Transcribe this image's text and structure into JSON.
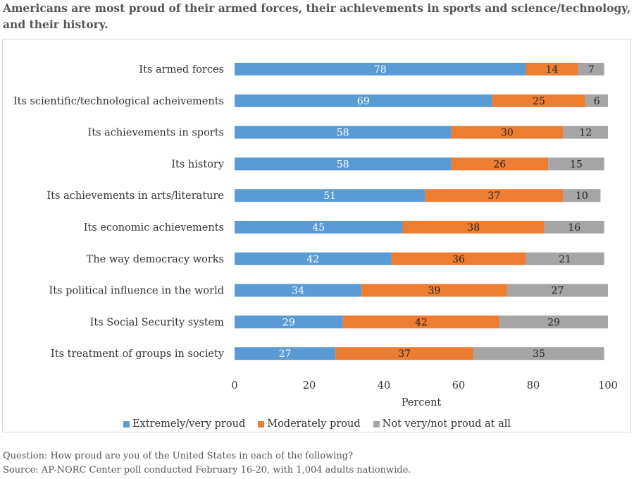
{
  "title": "Americans are most proud of their armed forces, their achievements in sports and science/technology, and their history.",
  "footer": {
    "question": "Question: How proud are you of the United States in each of the following?",
    "source": "Source: AP-NORC Center poll conducted February 16-20, with 1,004 adults nationwide."
  },
  "colors": {
    "extremely": "#5b9bd5",
    "moderately": "#ed7d31",
    "not": "#a5a5a5"
  },
  "chart_data": {
    "type": "bar",
    "orientation": "horizontal",
    "stacked": true,
    "categories": [
      "Its armed forces",
      "Its scientific/technological acheivements",
      "Its achievements in sports",
      "Its history",
      "Its achievements in arts/literature",
      "Its economic achievements",
      "The way democracy works",
      "Its political influence in the world",
      "Its Social Security system",
      "Its treatment of groups in society"
    ],
    "series": [
      {
        "name": "Extremely/very proud",
        "values": [
          78,
          69,
          58,
          58,
          51,
          45,
          42,
          34,
          29,
          27
        ]
      },
      {
        "name": "Moderately proud",
        "values": [
          14,
          25,
          30,
          26,
          37,
          38,
          36,
          39,
          42,
          37
        ]
      },
      {
        "name": "Not very/not proud at all",
        "values": [
          7,
          6,
          12,
          15,
          10,
          16,
          21,
          27,
          29,
          35
        ]
      }
    ],
    "xlabel": "Percent",
    "ylabel": "",
    "xlim": [
      0,
      100
    ],
    "xticks": [
      "0",
      "20",
      "40",
      "60",
      "80",
      "100"
    ],
    "grid": false,
    "legend_position": "bottom"
  }
}
